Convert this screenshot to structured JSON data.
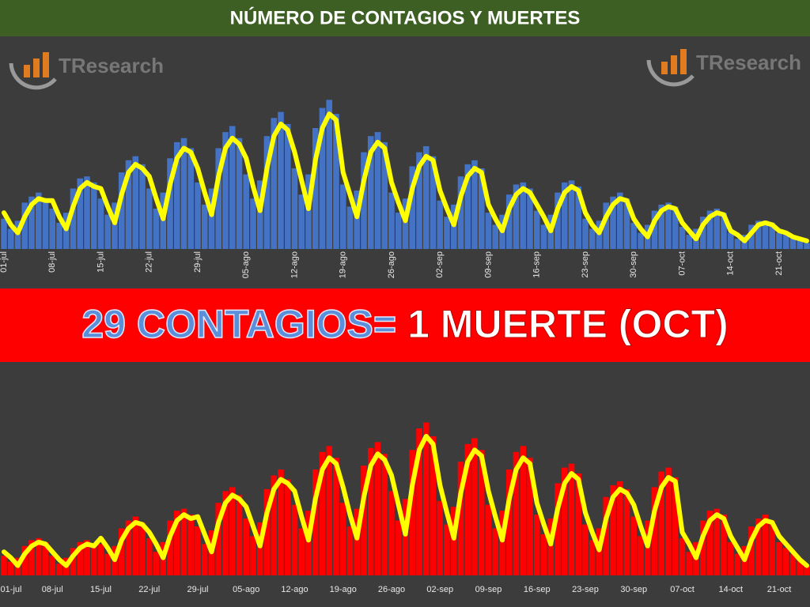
{
  "header": {
    "title": "NÚMERO DE CONTAGIOS Y MUERTES",
    "logo_left": "TResearch",
    "logo_right": "TResearch"
  },
  "banner": {
    "left": "29 CONTAGIOS=",
    "right": "1 MUERTE (OCT)"
  },
  "chart_data": [
    {
      "type": "combo",
      "ylim": [
        0,
        100
      ],
      "grid": false,
      "label_rotation": -90,
      "categories": [
        "01-jul",
        null,
        null,
        null,
        null,
        null,
        null,
        "08-jul",
        null,
        null,
        null,
        null,
        null,
        null,
        "15-jul",
        null,
        null,
        null,
        null,
        null,
        null,
        "22-jul",
        null,
        null,
        null,
        null,
        null,
        null,
        "29-jul",
        null,
        null,
        null,
        null,
        null,
        null,
        "05-ago",
        null,
        null,
        null,
        null,
        null,
        null,
        "12-ago",
        null,
        null,
        null,
        null,
        null,
        null,
        "19-ago",
        null,
        null,
        null,
        null,
        null,
        null,
        "26-ago",
        null,
        null,
        null,
        null,
        null,
        null,
        "02-sep",
        null,
        null,
        null,
        null,
        null,
        null,
        "09-sep",
        null,
        null,
        null,
        null,
        null,
        null,
        "16-sep",
        null,
        null,
        null,
        null,
        null,
        null,
        "23-sep",
        null,
        null,
        null,
        null,
        null,
        null,
        "30-sep",
        null,
        null,
        null,
        null,
        null,
        null,
        "07-oct",
        null,
        null,
        null,
        null,
        null,
        null,
        "14-oct",
        null,
        null,
        null,
        null,
        null,
        null,
        "21-oct",
        null,
        null,
        null,
        null
      ],
      "series": [
        {
          "type": "bar",
          "color": "#4472c4",
          "values": [
            15,
            10,
            14,
            23,
            26,
            28,
            25,
            20,
            13,
            18,
            30,
            35,
            36,
            33,
            25,
            17,
            23,
            38,
            44,
            46,
            42,
            30,
            20,
            28,
            45,
            53,
            55,
            50,
            33,
            22,
            30,
            50,
            58,
            61,
            55,
            37,
            25,
            34,
            56,
            65,
            68,
            62,
            40,
            27,
            37,
            60,
            70,
            74,
            67,
            32,
            21,
            29,
            48,
            56,
            58,
            53,
            28,
            18,
            25,
            41,
            48,
            51,
            46,
            24,
            16,
            22,
            36,
            42,
            44,
            40,
            18,
            12,
            17,
            27,
            32,
            33,
            30,
            19,
            12,
            17,
            28,
            33,
            34,
            31,
            15,
            10,
            14,
            23,
            26,
            28,
            25,
            13,
            8,
            12,
            19,
            22,
            23,
            21,
            11,
            7,
            10,
            16,
            19,
            20,
            18,
            8,
            5,
            7,
            12,
            14,
            14,
            13,
            8,
            7,
            6,
            5,
            3
          ]
        },
        {
          "type": "line",
          "color": "#ffff00",
          "values": [
            18,
            12,
            8,
            16,
            22,
            25,
            24,
            24,
            16,
            10,
            21,
            30,
            33,
            31,
            30,
            21,
            13,
            27,
            38,
            42,
            40,
            36,
            25,
            15,
            32,
            45,
            50,
            48,
            40,
            28,
            17,
            36,
            50,
            55,
            52,
            45,
            31,
            19,
            40,
            56,
            62,
            59,
            48,
            34,
            20,
            44,
            60,
            67,
            64,
            38,
            27,
            16,
            34,
            48,
            53,
            50,
            33,
            23,
            14,
            30,
            41,
            46,
            44,
            29,
            20,
            12,
            26,
            36,
            40,
            38,
            22,
            15,
            9,
            20,
            27,
            30,
            28,
            22,
            16,
            9,
            20,
            28,
            31,
            29,
            18,
            12,
            8,
            16,
            22,
            25,
            24,
            15,
            10,
            6,
            14,
            19,
            21,
            20,
            13,
            9,
            5,
            12,
            16,
            18,
            17,
            9,
            7,
            4,
            8,
            12,
            13,
            12,
            9,
            8,
            6,
            5,
            4
          ]
        }
      ]
    },
    {
      "type": "combo",
      "ylim": [
        0,
        100
      ],
      "grid": false,
      "label_rotation": 0,
      "categories": [
        "01-jul",
        null,
        null,
        null,
        null,
        null,
        null,
        "08-jul",
        null,
        null,
        null,
        null,
        null,
        null,
        "15-jul",
        null,
        null,
        null,
        null,
        null,
        null,
        "22-jul",
        null,
        null,
        null,
        null,
        null,
        null,
        "29-jul",
        null,
        null,
        null,
        null,
        null,
        null,
        "05-ago",
        null,
        null,
        null,
        null,
        null,
        null,
        "12-ago",
        null,
        null,
        null,
        null,
        null,
        null,
        "19-ago",
        null,
        null,
        null,
        null,
        null,
        null,
        "26-ago",
        null,
        null,
        null,
        null,
        null,
        null,
        "02-sep",
        null,
        null,
        null,
        null,
        null,
        null,
        "09-sep",
        null,
        null,
        null,
        null,
        null,
        null,
        "16-sep",
        null,
        null,
        null,
        null,
        null,
        null,
        "23-sep",
        null,
        null,
        null,
        null,
        null,
        null,
        "30-sep",
        null,
        null,
        null,
        null,
        null,
        null,
        "07-oct",
        null,
        null,
        null,
        null,
        null,
        null,
        "14-oct",
        null,
        null,
        null,
        null,
        null,
        null,
        "21-oct",
        null,
        null,
        null,
        null
      ],
      "series": [
        {
          "type": "bar",
          "color": "#ff0000",
          "values": [
            10,
            7,
            9,
            15,
            18,
            19,
            17,
            10,
            6,
            9,
            14,
            17,
            18,
            16,
            16,
            11,
            15,
            24,
            28,
            30,
            27,
            19,
            12,
            17,
            28,
            33,
            34,
            31,
            25,
            16,
            23,
            37,
            43,
            45,
            41,
            29,
            20,
            27,
            44,
            51,
            54,
            49,
            36,
            24,
            33,
            54,
            63,
            66,
            60,
            37,
            25,
            34,
            56,
            65,
            68,
            62,
            43,
            28,
            39,
            64,
            75,
            78,
            71,
            38,
            26,
            35,
            58,
            67,
            70,
            64,
            36,
            24,
            33,
            54,
            63,
            66,
            60,
            31,
            21,
            29,
            47,
            55,
            57,
            52,
            26,
            18,
            24,
            40,
            46,
            48,
            44,
            30,
            20,
            28,
            45,
            53,
            55,
            50,
            19,
            12,
            17,
            28,
            33,
            34,
            31,
            17,
            11,
            15,
            25,
            29,
            31,
            28,
            17,
            14,
            11,
            8,
            5
          ]
        },
        {
          "type": "line",
          "color": "#ffff00",
          "values": [
            12,
            9,
            5,
            11,
            15,
            17,
            16,
            12,
            8,
            5,
            10,
            14,
            16,
            15,
            19,
            14,
            8,
            18,
            24,
            27,
            26,
            22,
            16,
            9,
            20,
            28,
            31,
            29,
            30,
            21,
            12,
            27,
            37,
            41,
            39,
            35,
            25,
            15,
            32,
            44,
            49,
            47,
            43,
            30,
            18,
            39,
            54,
            60,
            57,
            45,
            31,
            19,
            40,
            56,
            62,
            59,
            51,
            36,
            21,
            46,
            64,
            71,
            67,
            46,
            32,
            19,
            42,
            58,
            64,
            61,
            43,
            30,
            18,
            39,
            54,
            60,
            57,
            37,
            26,
            16,
            34,
            47,
            52,
            49,
            32,
            22,
            13,
            29,
            40,
            44,
            42,
            36,
            25,
            15,
            33,
            45,
            50,
            48,
            22,
            16,
            9,
            20,
            28,
            31,
            29,
            20,
            14,
            8,
            18,
            25,
            28,
            27,
            20,
            16,
            12,
            8,
            5
          ]
        }
      ]
    }
  ]
}
